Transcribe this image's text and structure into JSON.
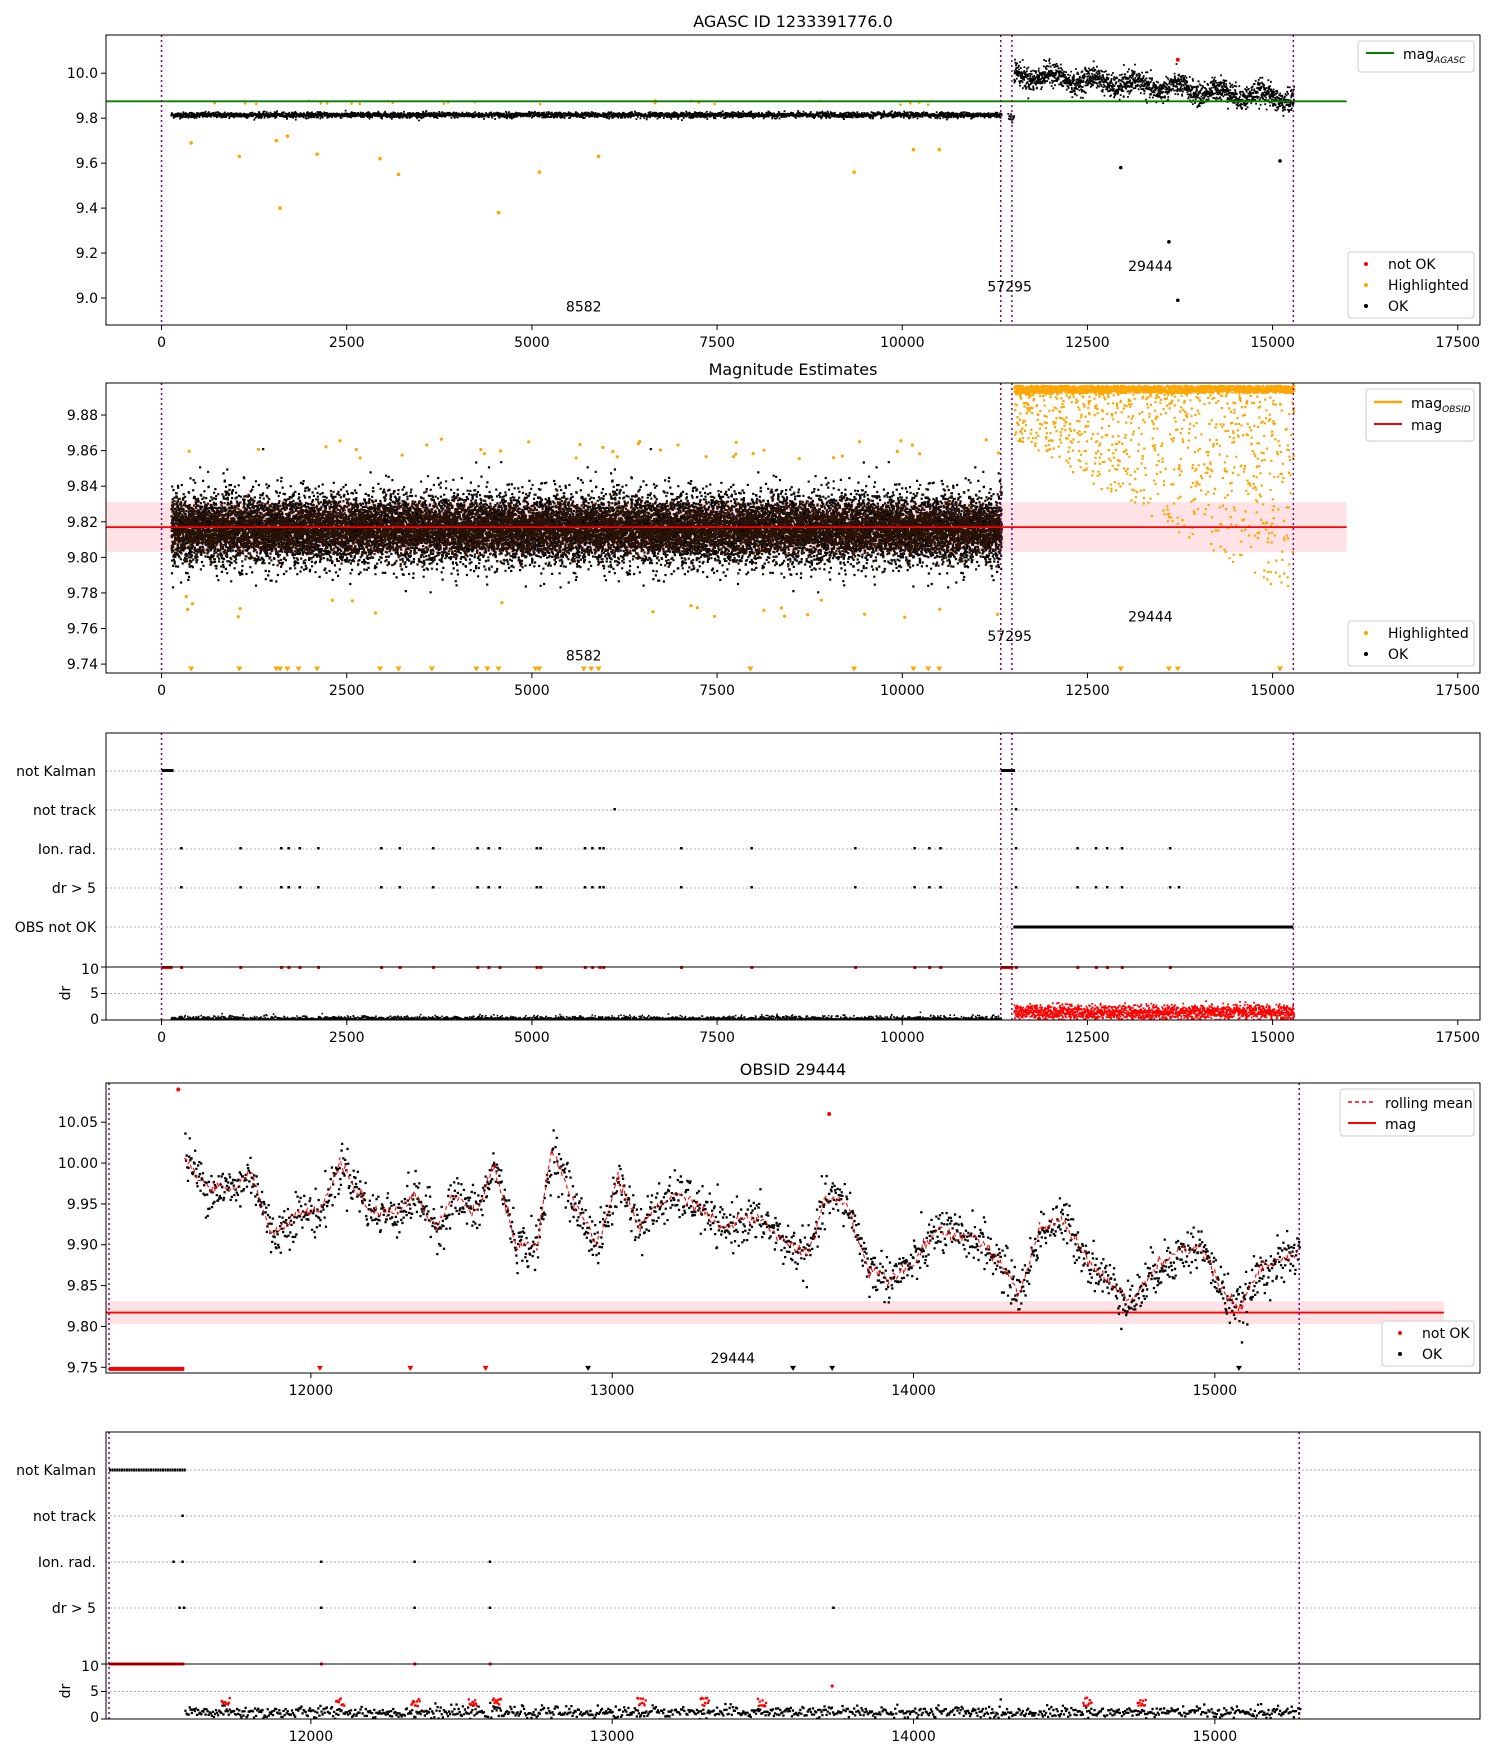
{
  "figure": {
    "panel1": {
      "title": "AGASC ID 1233391776.0",
      "xlim": [
        -750,
        17800
      ],
      "ylim": [
        8.88,
        10.17
      ],
      "xticks": [
        "0",
        "2500",
        "5000",
        "7500",
        "10000",
        "12500",
        "15000",
        "17500"
      ],
      "yticks": [
        "9.0",
        "9.2",
        "9.4",
        "9.6",
        "9.8",
        "10.0"
      ],
      "legend_upper": [
        {
          "label": "mag",
          "sub": "AGASC",
          "color": "#008000"
        }
      ],
      "legend_lower": [
        {
          "label": "not OK",
          "color": "#ff0000"
        },
        {
          "label": "Highlighted",
          "color": "#ffa500"
        },
        {
          "label": "OK",
          "color": "#000000"
        }
      ],
      "obsid_labels": [
        {
          "text": "8582",
          "x": 5700,
          "y": 8.94
        },
        {
          "text": "57295",
          "x": 11450,
          "y": 9.03
        },
        {
          "text": "29444",
          "x": 13350,
          "y": 9.12
        }
      ]
    },
    "panel2": {
      "title": "Magnitude Estimates",
      "xlim": [
        -750,
        17800
      ],
      "ylim": [
        9.735,
        9.898
      ],
      "xticks": [
        "0",
        "2500",
        "5000",
        "7500",
        "10000",
        "12500",
        "15000",
        "17500"
      ],
      "yticks": [
        "9.74",
        "9.76",
        "9.78",
        "9.80",
        "9.82",
        "9.84",
        "9.86",
        "9.88"
      ],
      "legend_upper": [
        {
          "label": "mag",
          "sub": "OBSID",
          "color": "#ffa500"
        },
        {
          "label": "mag",
          "color": "#ff0000"
        }
      ],
      "legend_lower": [
        {
          "label": "Highlighted",
          "color": "#ffa500"
        },
        {
          "label": "OK",
          "color": "#000000"
        }
      ],
      "obsid_labels": [
        {
          "text": "8582",
          "x": 5700,
          "y": 9.742
        },
        {
          "text": "57295",
          "x": 11450,
          "y": 9.753
        },
        {
          "text": "29444",
          "x": 13350,
          "y": 9.764
        }
      ]
    },
    "panel3": {
      "flags": [
        "not Kalman",
        "not track",
        "Ion. rad.",
        "dr > 5",
        "OBS not OK"
      ],
      "dr_label": "dr",
      "dr_yticks": [
        "0",
        "5",
        "10"
      ],
      "xticks": [
        "0",
        "2500",
        "5000",
        "7500",
        "10000",
        "12500",
        "15000",
        "17500"
      ]
    },
    "panel4": {
      "title": "OBSID 29444",
      "xlim": [
        11320,
        15880
      ],
      "ylim": [
        9.743,
        10.098
      ],
      "xticks": [
        "12000",
        "13000",
        "14000",
        "15000"
      ],
      "yticks": [
        "9.75",
        "9.80",
        "9.85",
        "9.90",
        "9.95",
        "10.00",
        "10.05"
      ],
      "legend_upper": [
        {
          "label": "rolling mean",
          "color": "#ff0000",
          "dashed": true
        },
        {
          "label": "mag",
          "color": "#ff0000"
        }
      ],
      "legend_lower": [
        {
          "label": "not OK",
          "color": "#ff0000"
        },
        {
          "label": "OK",
          "color": "#000000"
        }
      ],
      "obsid_labels": [
        {
          "text": "29444",
          "x": 13400,
          "y": 9.755
        }
      ]
    },
    "panel5": {
      "flags": [
        "not Kalman",
        "not track",
        "Ion. rad.",
        "dr > 5"
      ],
      "dr_label": "dr",
      "dr_yticks": [
        "0",
        "5",
        "10"
      ],
      "xticks": [
        "12000",
        "13000",
        "14000",
        "15000"
      ]
    }
  },
  "chart_data": [
    {
      "type": "scatter",
      "title": "AGASC ID 1233391776.0",
      "xlim": [
        -750,
        17800
      ],
      "ylim": [
        8.88,
        10.17
      ],
      "series": [
        {
          "name": "OK",
          "description": "~9.82 from 100 to 11330; ~9.81 at 11500; 9.88-10.05 from 11500 to 15300",
          "outliers": [
            [
              12950,
              9.58
            ],
            [
              13600,
              9.25
            ],
            [
              13720,
              8.99
            ],
            [
              15100,
              9.61
            ]
          ]
        },
        {
          "name": "Highlighted",
          "outliers": [
            [
              400,
              9.69
            ],
            [
              1050,
              9.63
            ],
            [
              1550,
              9.7
            ],
            [
              1600,
              9.4
            ],
            [
              1700,
              9.72
            ],
            [
              2100,
              9.64
            ],
            [
              2950,
              9.62
            ],
            [
              3200,
              9.55
            ],
            [
              4550,
              9.38
            ],
            [
              5100,
              9.56
            ],
            [
              5900,
              9.63
            ],
            [
              9350,
              9.56
            ],
            [
              10150,
              9.66
            ],
            [
              10500,
              9.66
            ]
          ]
        },
        {
          "name": "not OK",
          "points": [
            [
              13720,
              10.06
            ]
          ]
        }
      ],
      "hlines": [
        {
          "name": "mag_AGASC",
          "y": 9.875,
          "color": "#008000",
          "xrange": [
            -750,
            16000
          ]
        }
      ],
      "vlines": [
        0,
        11330,
        11480,
        15280
      ]
    },
    {
      "type": "scatter",
      "title": "Magnitude Estimates",
      "xlim": [
        -750,
        17800
      ],
      "ylim": [
        9.735,
        9.898
      ],
      "series": [
        {
          "name": "OK",
          "description": "centered 9.817, spread 9.78-9.85, x 100-11330"
        },
        {
          "name": "Highlighted",
          "description": "x 11500-15300 spread 9.77-9.898 (clipped at top)"
        }
      ],
      "hlines": [
        {
          "name": "mag",
          "y": 9.817,
          "band": [
            9.803,
            9.831
          ],
          "color": "#ff0000",
          "xrange": [
            -750,
            16000
          ]
        }
      ],
      "vlines": [
        0,
        11330,
        11480,
        15280
      ]
    },
    {
      "type": "scatter",
      "title": "",
      "flags": [
        "not Kalman",
        "not track",
        "Ion. rad.",
        "dr > 5",
        "OBS not OK"
      ],
      "dr_ylim": [
        0,
        10
      ],
      "dr_description": "dr ~0.3 for x 0-11330 (black); dr 1-3 for x 11500-15300 (red)"
    },
    {
      "type": "line",
      "title": "OBSID 29444",
      "xlim": [
        11320,
        15880
      ],
      "ylim": [
        9.743,
        10.098
      ],
      "series": [
        {
          "name": "rolling mean",
          "x": [
            11580,
            11650,
            11750,
            11800,
            11870,
            11950,
            12030,
            12100,
            12200,
            12280,
            12350,
            12420,
            12470,
            12550,
            12610,
            12680,
            12750,
            12800,
            12870,
            12950,
            13020,
            13090,
            13150,
            13220,
            13280,
            13360,
            13420,
            13500,
            13580,
            13650,
            13710,
            13780,
            13850,
            13920,
            14000,
            14080,
            14140,
            14210,
            14280,
            14350,
            14420,
            14500,
            14580,
            14660,
            14720,
            14800,
            14880,
            14950,
            15030,
            15080,
            15150,
            15280
          ],
          "values": [
            10.01,
            9.97,
            9.97,
            9.99,
            9.91,
            9.94,
            9.94,
            10.0,
            9.94,
            9.94,
            9.96,
            9.92,
            9.96,
            9.94,
            10.0,
            9.9,
            9.9,
            10.02,
            9.95,
            9.9,
            9.98,
            9.92,
            9.95,
            9.96,
            9.95,
            9.92,
            9.93,
            9.93,
            9.9,
            9.89,
            9.96,
            9.95,
            9.87,
            9.86,
            9.88,
            9.92,
            9.91,
            9.91,
            9.88,
            9.84,
            9.92,
            9.93,
            9.88,
            9.85,
            9.83,
            9.87,
            9.89,
            9.9,
            9.84,
            9.82,
            9.87,
            9.89
          ]
        },
        {
          "name": "not OK",
          "points": [
            [
              11560,
              10.09
            ],
            [
              13720,
              10.06
            ]
          ]
        }
      ],
      "hlines": [
        {
          "name": "mag",
          "y": 9.817,
          "band": [
            9.803,
            9.831
          ]
        }
      ],
      "vlines": [
        11330,
        15280
      ]
    },
    {
      "type": "scatter",
      "title": "",
      "flags": [
        "not Kalman",
        "not track",
        "Ion. rad.",
        "dr > 5"
      ],
      "dr_ylim": [
        0,
        10
      ]
    }
  ]
}
